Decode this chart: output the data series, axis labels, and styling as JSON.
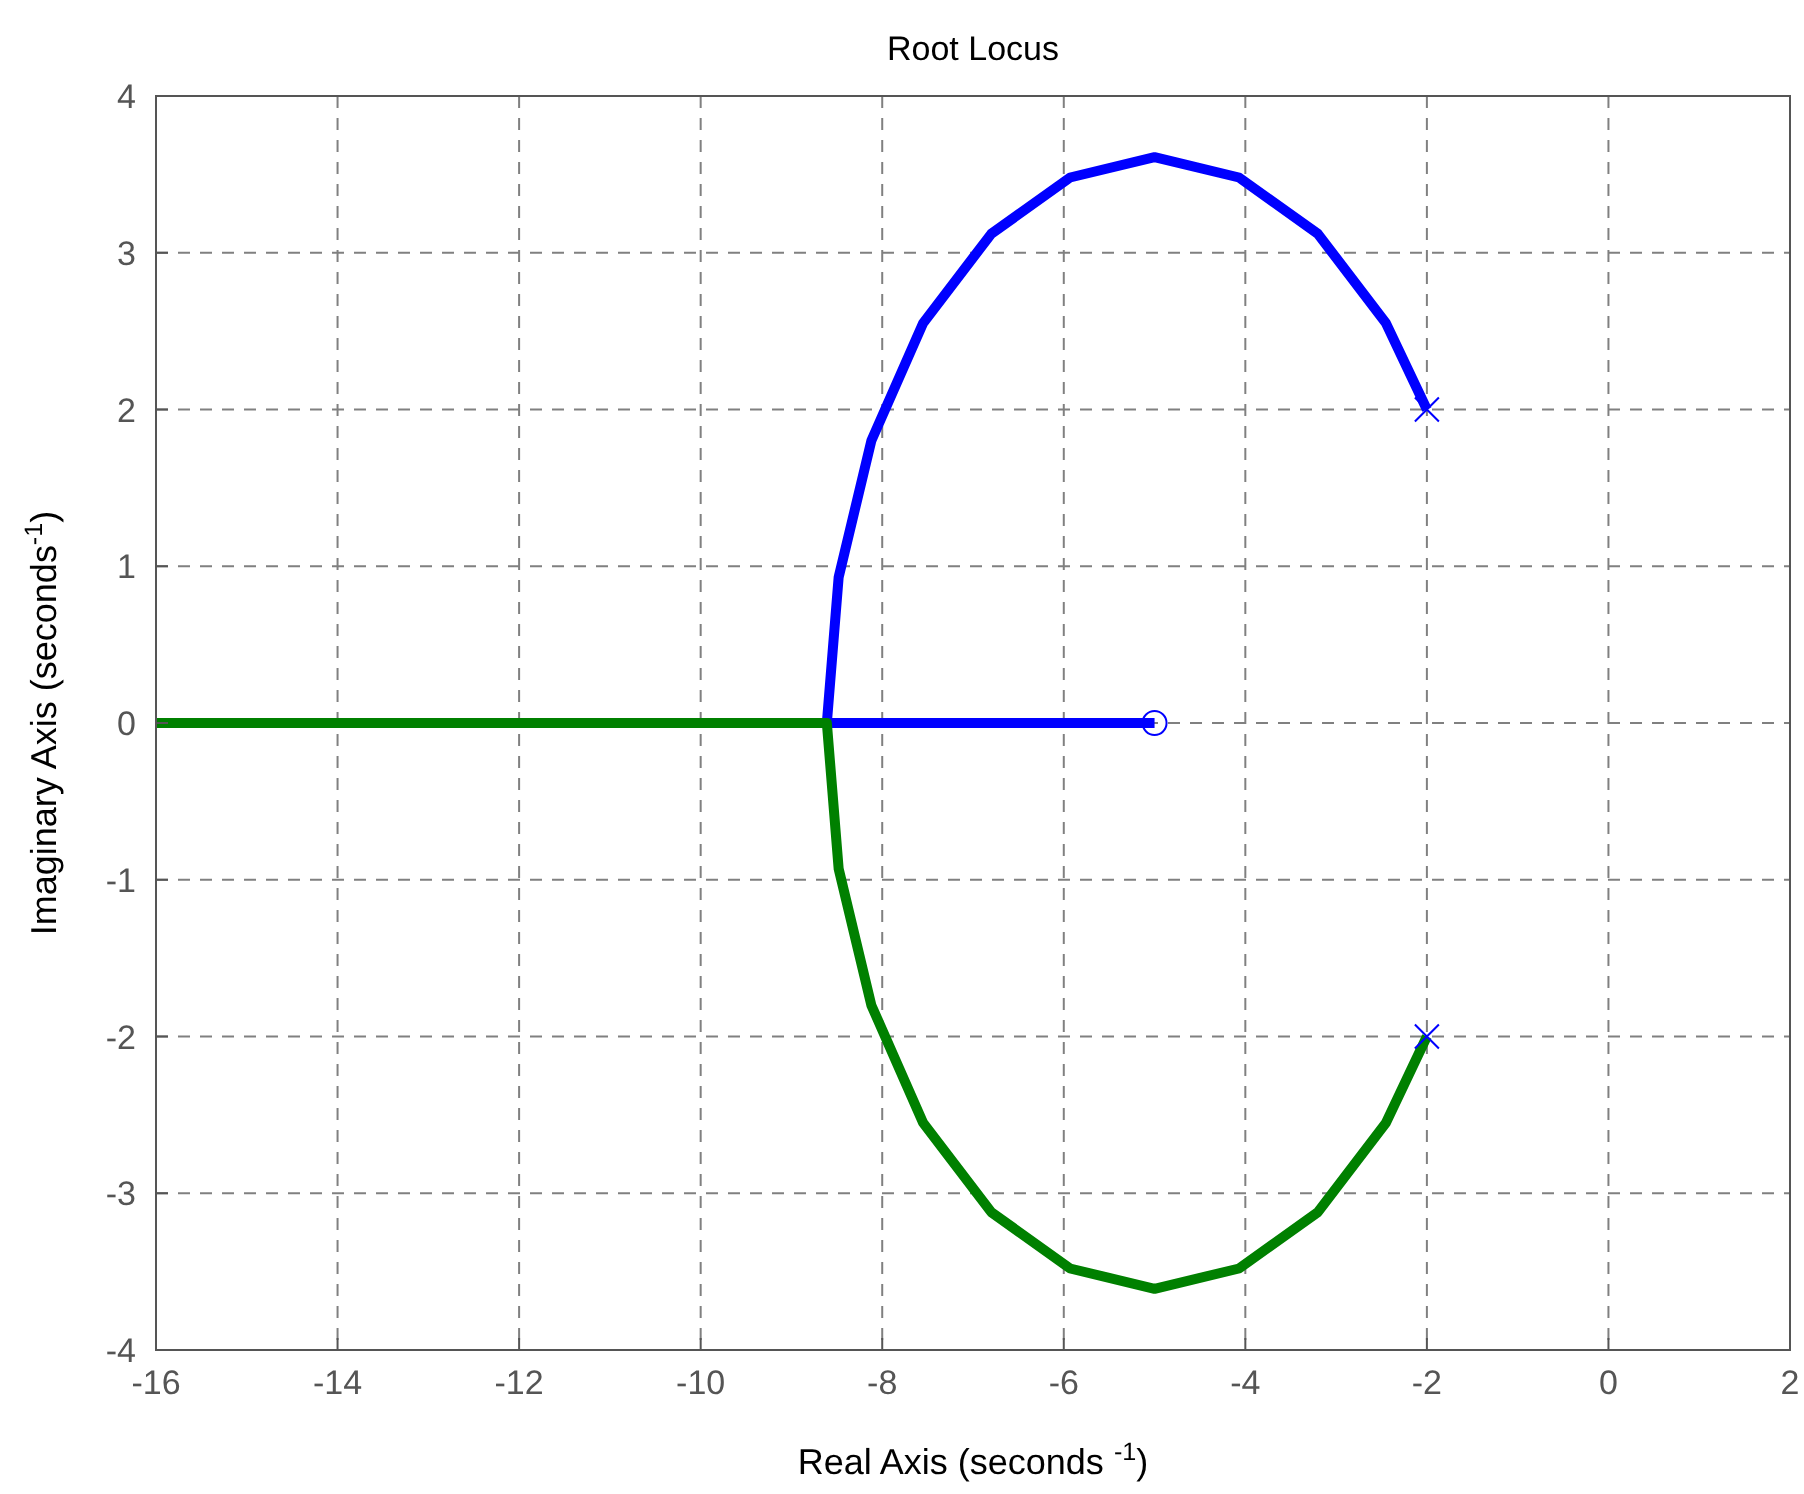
{
  "chart_data": {
    "type": "line",
    "title": "Root Locus",
    "xlabel": "Real Axis (seconds $^{-1}$)",
    "ylabel": "Imaginary Axis (seconds$^{-1}$)",
    "xlim": [
      -16,
      2
    ],
    "xticks": [
      -16,
      -14,
      -12,
      -10,
      -8,
      -6,
      -4,
      -2,
      0,
      2
    ],
    "ylim": [
      -4,
      4
    ],
    "yticks": [
      -4,
      -3,
      -2,
      -1,
      0,
      1,
      2,
      3,
      4
    ],
    "grid": true,
    "line_style": "solid",
    "marker": "none",
    "series": [
      {
        "color": "#0000ff",
        "x": [
          -2,
          -2.45,
          -3.2,
          -4.07,
          -5,
          -5.93,
          -6.8,
          -7.55,
          -8.12,
          -8.48,
          -8.61,
          -5
        ],
        "values": [
          2,
          2.55,
          3.12,
          3.48,
          3.61,
          3.48,
          3.12,
          2.55,
          1.8,
          0.93,
          0,
          0
        ]
      },
      {
        "color": "#008000",
        "x": [
          -2,
          -2.45,
          -3.2,
          -4.07,
          -5,
          -5.93,
          -6.8,
          -7.55,
          -8.12,
          -8.48,
          -8.61,
          -16
        ],
        "values": [
          -2,
          -2.55,
          -3.12,
          -3.48,
          -3.61,
          -3.48,
          -3.12,
          -2.55,
          -1.8,
          -0.93,
          0,
          0
        ]
      },
      {
        "type": "scatter",
        "marker": "cross",
        "color": "#0000ff",
        "x": [
          -2,
          -2
        ],
        "values": [
          2,
          -2
        ]
      },
      {
        "type": "scatter",
        "marker": "circle",
        "color": "#0000ff",
        "x": [
          -5
        ],
        "values": [
          0
        ]
      }
    ]
  }
}
